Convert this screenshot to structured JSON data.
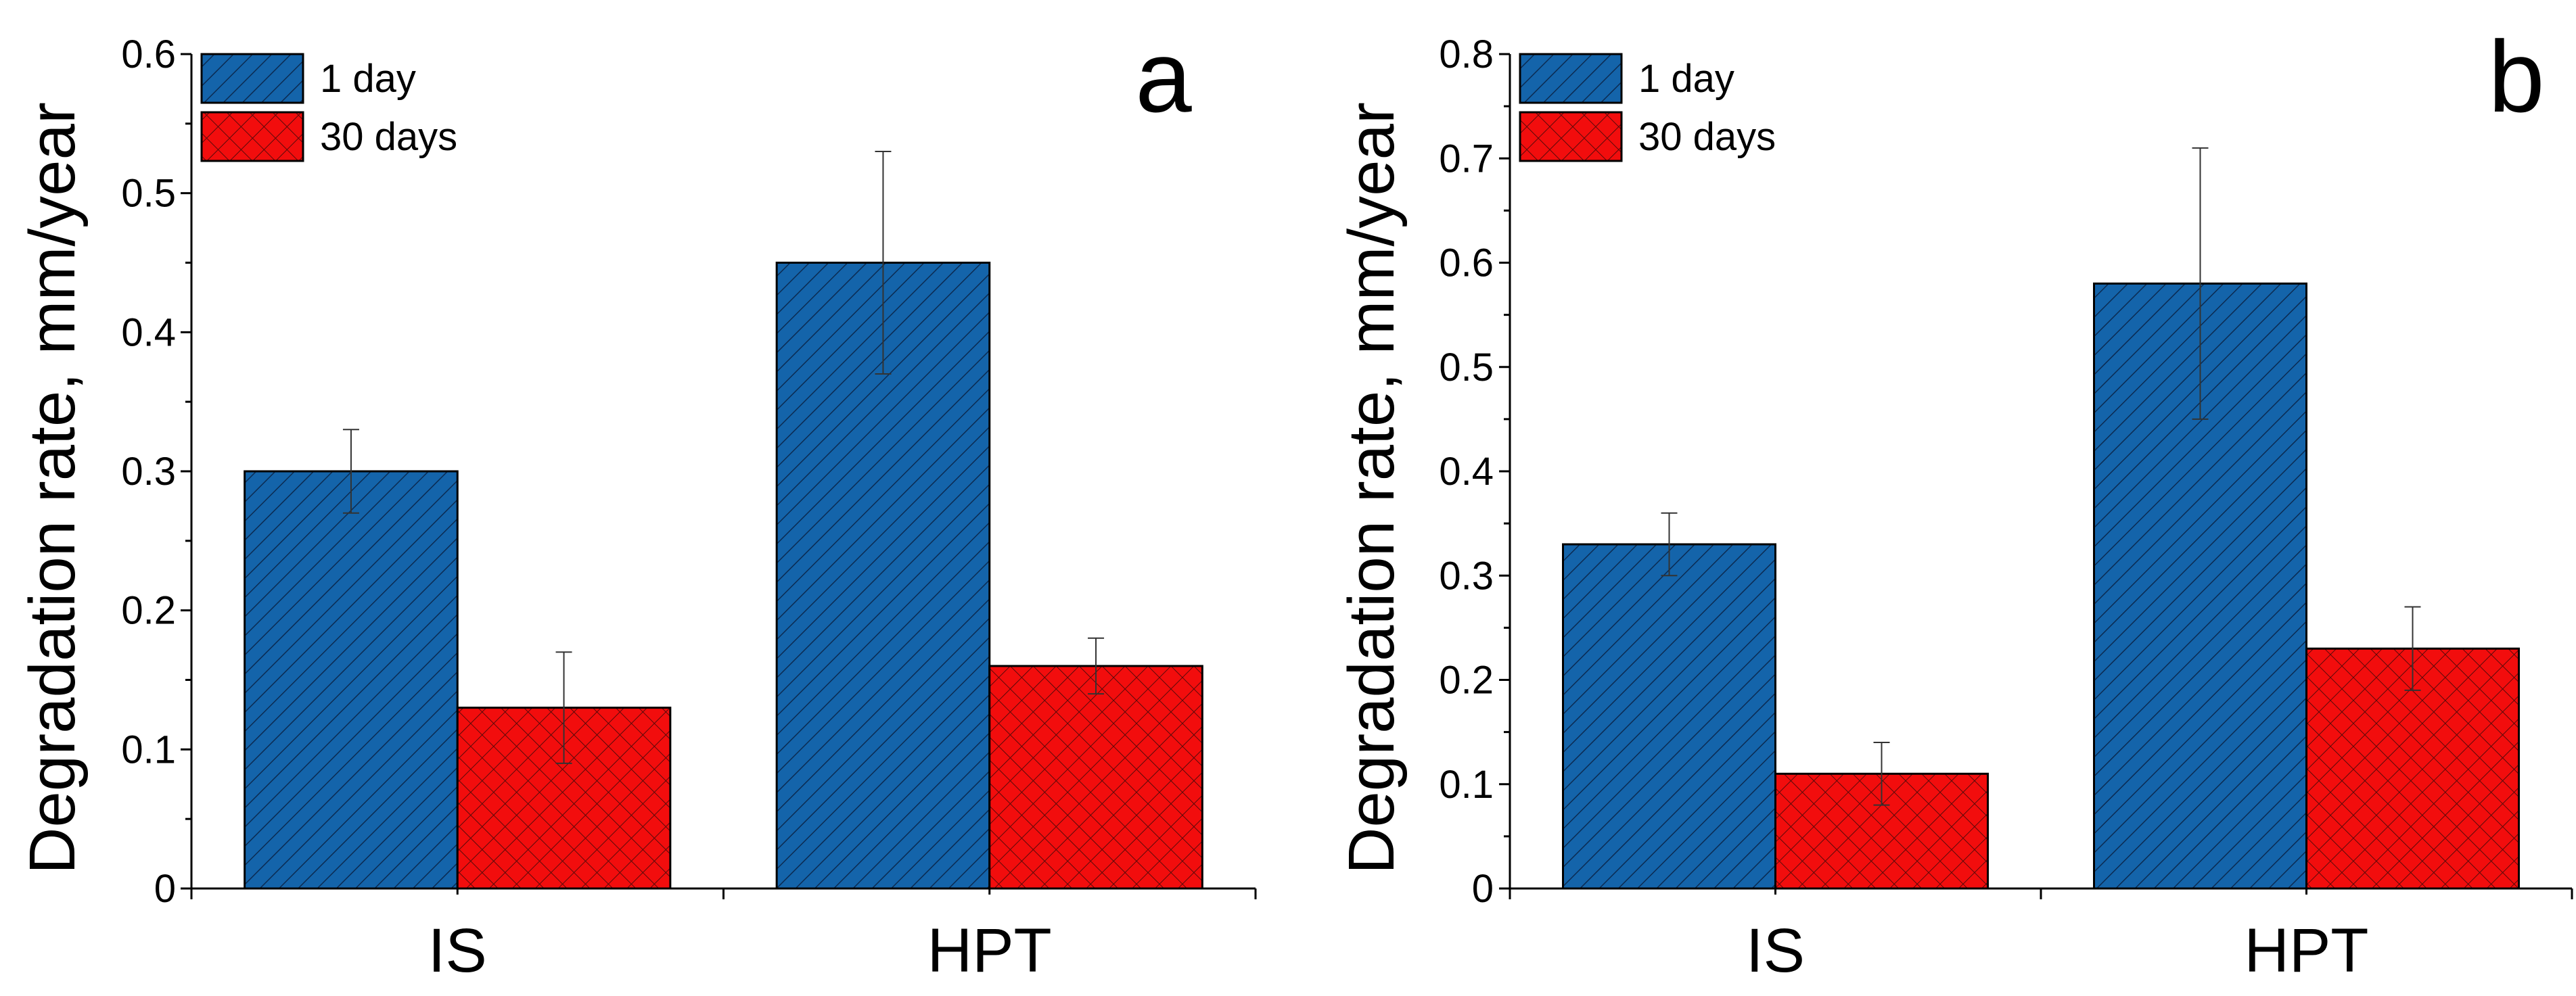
{
  "chart_data": [
    {
      "type": "bar",
      "panel_label": "a",
      "categories": [
        "IS",
        "HPT"
      ],
      "series": [
        {
          "name": "1 day",
          "values": [
            0.3,
            0.45
          ],
          "errors": [
            0.03,
            0.08
          ],
          "color": "#1464AA",
          "pattern": "diagonal-hatch"
        },
        {
          "name": "30 days",
          "values": [
            0.13,
            0.16
          ],
          "errors": [
            0.04,
            0.02
          ],
          "color": "#F20D0D",
          "pattern": "crosshatch"
        }
      ],
      "title": "",
      "xlabel": "",
      "ylabel": "Degradation rate, mm/year",
      "ylim": [
        0,
        0.6
      ],
      "yticks": [
        "0",
        "0.1",
        "0.2",
        "0.3",
        "0.4",
        "0.5",
        "0.6"
      ],
      "legend": "top-left",
      "grid": false
    },
    {
      "type": "bar",
      "panel_label": "b",
      "categories": [
        "IS",
        "HPT"
      ],
      "series": [
        {
          "name": "1 day",
          "values": [
            0.33,
            0.58
          ],
          "errors": [
            0.03,
            0.13
          ],
          "color": "#1464AA",
          "pattern": "diagonal-hatch"
        },
        {
          "name": "30 days",
          "values": [
            0.11,
            0.23
          ],
          "errors": [
            0.03,
            0.04
          ],
          "color": "#F20D0D",
          "pattern": "crosshatch"
        }
      ],
      "title": "",
      "xlabel": "",
      "ylabel": "Degradation rate, mm/year",
      "ylim": [
        0,
        0.8
      ],
      "yticks": [
        "0",
        "0.1",
        "0.2",
        "0.3",
        "0.4",
        "0.5",
        "0.6",
        "0.7",
        "0.8"
      ],
      "legend": "top-left",
      "grid": false
    }
  ]
}
